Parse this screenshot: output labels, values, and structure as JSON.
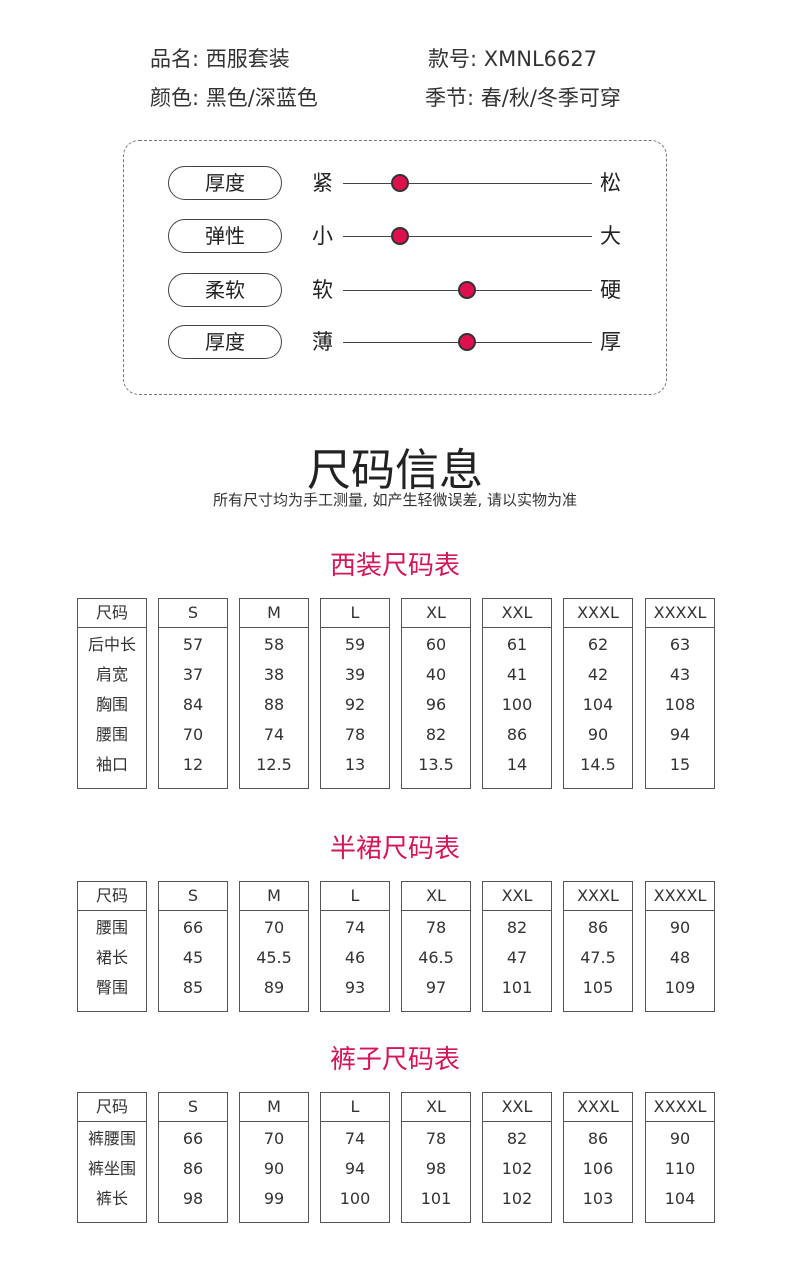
{
  "info": [
    "品名: 西服套装",
    "款号: XMNL6627",
    "颜色: 黑色/深蓝色",
    "季节: 春/秋/冬季可穿"
  ],
  "attributes": [
    {
      "label": "厚度",
      "left": "紧",
      "right": "松"
    },
    {
      "label": "弹性",
      "left": "小",
      "right": "大"
    },
    {
      "label": "柔软",
      "left": "软",
      "right": "硬"
    },
    {
      "label": "厚度",
      "left": "薄",
      "right": "厚"
    }
  ],
  "title": "尺码信息",
  "subtitle": "所有尺寸均为手工测量, 如产生轻微误差, 请以实物为准",
  "tables": [
    {
      "title": "西装尺码表",
      "header": [
        "尺码",
        "S",
        "M",
        "L",
        "XL",
        "XXL",
        "XXXL",
        "XXXXL"
      ],
      "rows": [
        [
          "后中长",
          57,
          58,
          59,
          60,
          61,
          62,
          63
        ],
        [
          "肩宽",
          37,
          38,
          39,
          40,
          41,
          42,
          43
        ],
        [
          "胸围",
          84,
          88,
          92,
          96,
          100,
          104,
          108
        ],
        [
          "腰围",
          70,
          74,
          78,
          82,
          86,
          90,
          94
        ],
        [
          "袖口",
          12,
          12.5,
          13,
          13.5,
          14,
          14.5,
          15
        ]
      ]
    },
    {
      "title": "半裙尺码表",
      "header": [
        "尺码",
        "S",
        "M",
        "L",
        "XL",
        "XXL",
        "XXXL",
        "XXXXL"
      ],
      "rows": [
        [
          "腰围",
          66,
          70,
          74,
          78,
          82,
          86,
          90
        ],
        [
          "裙长",
          45,
          45.5,
          46,
          46.5,
          47,
          47.5,
          48
        ],
        [
          "臀围",
          85,
          89,
          93,
          97,
          101,
          105,
          109
        ]
      ]
    },
    {
      "title": "裤子尺码表",
      "header": [
        "尺码",
        "S",
        "M",
        "L",
        "XL",
        "XXL",
        "XXXL",
        "XXXXL"
      ],
      "rows": [
        [
          "裤腰围",
          66,
          70,
          74,
          78,
          82,
          86,
          90
        ],
        [
          "裤坐围",
          86,
          90,
          94,
          98,
          102,
          106,
          110
        ],
        [
          "裤长",
          98,
          99,
          100,
          101,
          102,
          103,
          104
        ]
      ]
    }
  ]
}
